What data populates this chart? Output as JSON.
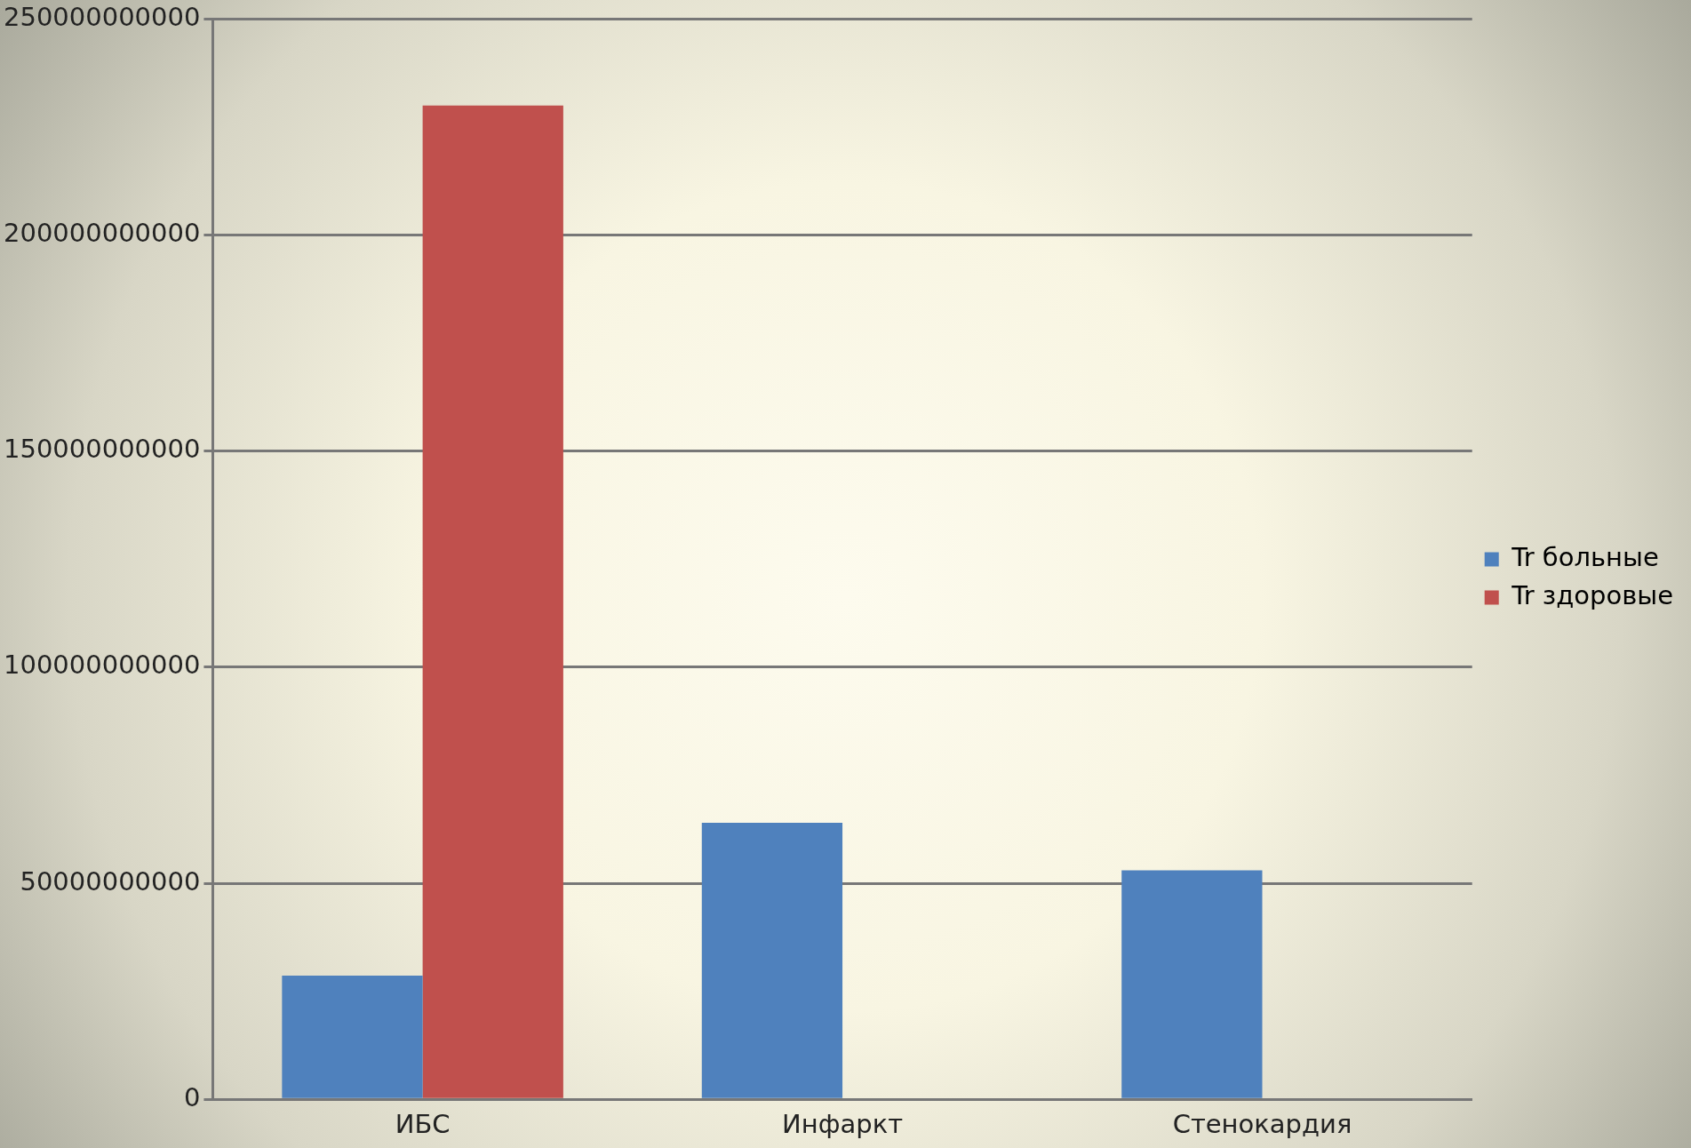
{
  "chart_data": {
    "type": "bar",
    "categories": [
      "ИБС",
      "Инфаркт",
      "Стенокардия"
    ],
    "series": [
      {
        "name": "Tr больные",
        "color": "#4f81bd",
        "values": [
          28600000000,
          64000000000,
          53000000000
        ]
      },
      {
        "name": "Tr здоровые",
        "color": "#c0504d",
        "values": [
          230000000000,
          null,
          null
        ]
      }
    ],
    "ylim": [
      0,
      250000000000
    ],
    "yticks": [
      0,
      50000000000,
      100000000000,
      150000000000,
      200000000000,
      250000000000
    ],
    "grid": "y",
    "legend": "right"
  }
}
